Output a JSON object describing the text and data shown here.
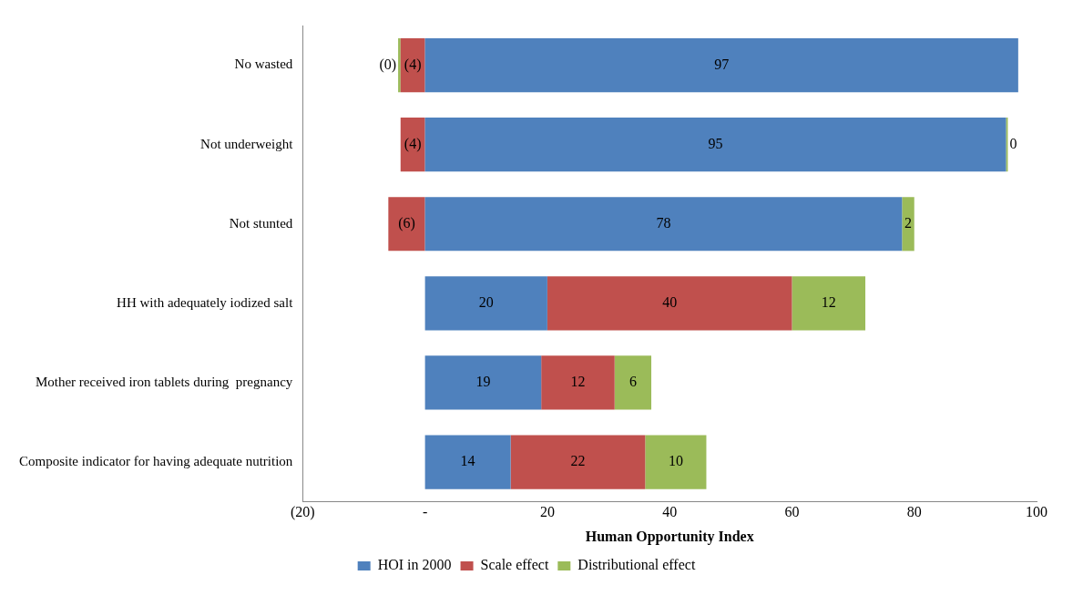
{
  "chart_data": {
    "type": "bar",
    "orientation": "horizontal",
    "stacked": true,
    "xlabel": "Human Opportunity Index",
    "categories": [
      "No wasted",
      "Not underweight",
      "Not stunted",
      "HH with adequately iodized salt",
      "Mother received iron tablets during  pregnancy",
      "Composite indicator for having adequate nutrition"
    ],
    "series": [
      {
        "name": "HOI in 2000",
        "color": "#4f81bd",
        "values": [
          97,
          95,
          78,
          20,
          19,
          14
        ],
        "value_labels": [
          "97",
          "95",
          "78",
          "20",
          "19",
          "14"
        ]
      },
      {
        "name": "Scale effect",
        "color": "#c0504d",
        "values": [
          -4,
          -4,
          -6,
          40,
          12,
          22
        ],
        "value_labels": [
          "(4)",
          "(4)",
          "(6)",
          "40",
          "12",
          "22"
        ]
      },
      {
        "name": "Distributional effect",
        "color": "#9bbb59",
        "values": [
          -0.4,
          0.3,
          2,
          12,
          6,
          10
        ],
        "value_labels": [
          "(0)",
          "0",
          "2",
          "12",
          "6",
          "10"
        ]
      }
    ],
    "xlim": [
      -20,
      100
    ],
    "xticks": [
      {
        "value": -20,
        "label": "(20)"
      },
      {
        "value": 0,
        "label": "-"
      },
      20,
      40,
      60,
      80,
      100
    ],
    "grid": false,
    "legend": "bottom"
  }
}
